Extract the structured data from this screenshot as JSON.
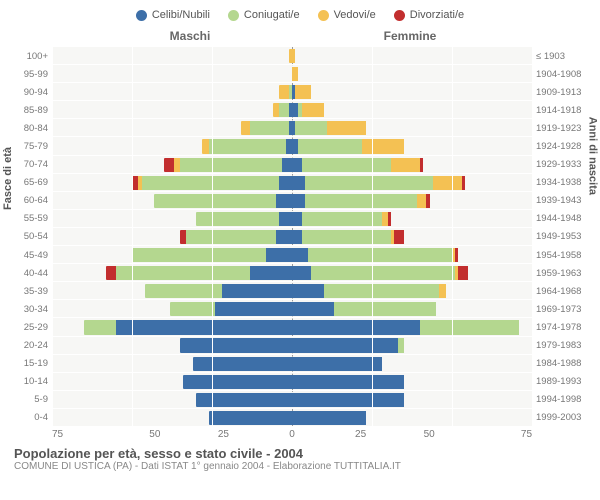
{
  "legend": [
    {
      "label": "Celibi/Nubili",
      "color": "#3d6fa8"
    },
    {
      "label": "Coniugati/e",
      "color": "#b4d78f"
    },
    {
      "label": "Vedovi/e",
      "color": "#f4c153"
    },
    {
      "label": "Divorziati/e",
      "color": "#c22e2e"
    }
  ],
  "headers": {
    "left": "Maschi",
    "right": "Femmine"
  },
  "axis_titles": {
    "left": "Fasce di età",
    "right": "Anni di nascita"
  },
  "colors": {
    "celibi": "#3d6fa8",
    "coniugati": "#b4d78f",
    "vedovi": "#f4c153",
    "divorziati": "#c22e2e",
    "plot_bg": "#f7f7f5"
  },
  "x_max": 75,
  "x_ticks_left": [
    75,
    50,
    25,
    0
  ],
  "x_ticks_right": [
    25,
    50,
    75
  ],
  "age_labels": [
    "100+",
    "95-99",
    "90-94",
    "85-89",
    "80-84",
    "75-79",
    "70-74",
    "65-69",
    "60-64",
    "55-59",
    "50-54",
    "45-49",
    "40-44",
    "35-39",
    "30-34",
    "25-29",
    "20-24",
    "15-19",
    "10-14",
    "5-9",
    "0-4"
  ],
  "birth_labels": [
    "≤ 1903",
    "1904-1908",
    "1909-1913",
    "1914-1918",
    "1919-1923",
    "1924-1928",
    "1929-1933",
    "1934-1938",
    "1939-1943",
    "1944-1948",
    "1949-1953",
    "1954-1958",
    "1959-1963",
    "1964-1968",
    "1969-1973",
    "1974-1978",
    "1979-1983",
    "1984-1988",
    "1989-1993",
    "1994-1998",
    "1999-2003"
  ],
  "data": [
    {
      "m": {
        "cel": 0,
        "con": 0,
        "ved": 1,
        "div": 0
      },
      "f": {
        "cel": 0,
        "con": 0,
        "ved": 1,
        "div": 0
      }
    },
    {
      "m": {
        "cel": 0,
        "con": 0,
        "ved": 0,
        "div": 0
      },
      "f": {
        "cel": 0,
        "con": 0,
        "ved": 2,
        "div": 0
      }
    },
    {
      "m": {
        "cel": 0,
        "con": 1,
        "ved": 3,
        "div": 0
      },
      "f": {
        "cel": 1,
        "con": 0,
        "ved": 5,
        "div": 0
      }
    },
    {
      "m": {
        "cel": 1,
        "con": 3,
        "ved": 2,
        "div": 0
      },
      "f": {
        "cel": 2,
        "con": 1,
        "ved": 7,
        "div": 0
      }
    },
    {
      "m": {
        "cel": 1,
        "con": 12,
        "ved": 3,
        "div": 0
      },
      "f": {
        "cel": 1,
        "con": 10,
        "ved": 12,
        "div": 0
      }
    },
    {
      "m": {
        "cel": 2,
        "con": 24,
        "ved": 2,
        "div": 0
      },
      "f": {
        "cel": 2,
        "con": 20,
        "ved": 13,
        "div": 0
      }
    },
    {
      "m": {
        "cel": 3,
        "con": 32,
        "ved": 2,
        "div": 3
      },
      "f": {
        "cel": 3,
        "con": 28,
        "ved": 9,
        "div": 1
      }
    },
    {
      "m": {
        "cel": 4,
        "con": 43,
        "ved": 1,
        "div": 2
      },
      "f": {
        "cel": 4,
        "con": 40,
        "ved": 9,
        "div": 1
      }
    },
    {
      "m": {
        "cel": 5,
        "con": 38,
        "ved": 0,
        "div": 0
      },
      "f": {
        "cel": 4,
        "con": 35,
        "ved": 3,
        "div": 1
      }
    },
    {
      "m": {
        "cel": 4,
        "con": 26,
        "ved": 0,
        "div": 0
      },
      "f": {
        "cel": 3,
        "con": 25,
        "ved": 2,
        "div": 1
      }
    },
    {
      "m": {
        "cel": 5,
        "con": 28,
        "ved": 0,
        "div": 2
      },
      "f": {
        "cel": 3,
        "con": 28,
        "ved": 1,
        "div": 3
      }
    },
    {
      "m": {
        "cel": 8,
        "con": 42,
        "ved": 0,
        "div": 0
      },
      "f": {
        "cel": 5,
        "con": 45,
        "ved": 1,
        "div": 1
      }
    },
    {
      "m": {
        "cel": 13,
        "con": 42,
        "ved": 0,
        "div": 3
      },
      "f": {
        "cel": 6,
        "con": 45,
        "ved": 1,
        "div": 3
      }
    },
    {
      "m": {
        "cel": 22,
        "con": 24,
        "ved": 0,
        "div": 0
      },
      "f": {
        "cel": 10,
        "con": 36,
        "ved": 2,
        "div": 0
      }
    },
    {
      "m": {
        "cel": 24,
        "con": 14,
        "ved": 0,
        "div": 0
      },
      "f": {
        "cel": 13,
        "con": 32,
        "ved": 0,
        "div": 0
      }
    },
    {
      "m": {
        "cel": 55,
        "con": 10,
        "ved": 0,
        "div": 0
      },
      "f": {
        "cel": 40,
        "con": 31,
        "ved": 0,
        "div": 0
      }
    },
    {
      "m": {
        "cel": 35,
        "con": 0,
        "ved": 0,
        "div": 0
      },
      "f": {
        "cel": 33,
        "con": 2,
        "ved": 0,
        "div": 0
      }
    },
    {
      "m": {
        "cel": 31,
        "con": 0,
        "ved": 0,
        "div": 0
      },
      "f": {
        "cel": 28,
        "con": 0,
        "ved": 0,
        "div": 0
      }
    },
    {
      "m": {
        "cel": 34,
        "con": 0,
        "ved": 0,
        "div": 0
      },
      "f": {
        "cel": 35,
        "con": 0,
        "ved": 0,
        "div": 0
      }
    },
    {
      "m": {
        "cel": 30,
        "con": 0,
        "ved": 0,
        "div": 0
      },
      "f": {
        "cel": 35,
        "con": 0,
        "ved": 0,
        "div": 0
      }
    },
    {
      "m": {
        "cel": 26,
        "con": 0,
        "ved": 0,
        "div": 0
      },
      "f": {
        "cel": 23,
        "con": 0,
        "ved": 0,
        "div": 0
      }
    }
  ],
  "footer": {
    "title": "Popolazione per età, sesso e stato civile - 2004",
    "sub": "COMUNE DI USTICA (PA) - Dati ISTAT 1° gennaio 2004 - Elaborazione TUTTITALIA.IT"
  }
}
